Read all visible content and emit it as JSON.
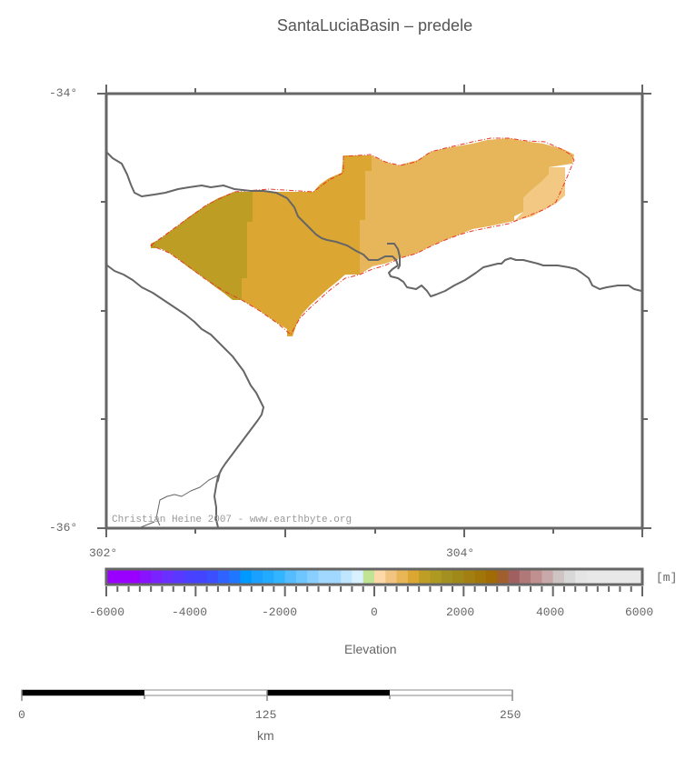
{
  "title": "SantaLuciaBasin – predele",
  "map": {
    "lat_labels": [
      "-34°",
      "-36°"
    ],
    "lon_labels": [
      "302°",
      "304°"
    ],
    "credit": "Christian Heine 2007 - www.earthbyte.org",
    "basin_outline_color": "#e8382a",
    "coastline_color": "#666666"
  },
  "colorbar": {
    "unit": "[m]",
    "title": "Elevation",
    "tick_labels": [
      "-6000",
      "-4000",
      "-2000",
      "0",
      "2000",
      "4000",
      "6000"
    ],
    "min": -6000,
    "max": 6000,
    "colors": [
      "#9900ff",
      "#9900ff",
      "#9900ff",
      "#8a13ff",
      "#7a22ff",
      "#6a30ff",
      "#5a38ff",
      "#4a40ff",
      "#4444ff",
      "#3c4fff",
      "#2e63ff",
      "#1f77ff",
      "#0099ff",
      "#1aa0ff",
      "#22aaff",
      "#33b4ff",
      "#55bdff",
      "#6dc6ff",
      "#88cfff",
      "#a0d8ff",
      "#a0d8ff",
      "#bfe5ff",
      "#d8f0ff",
      "#c0e494",
      "#fdd8a8",
      "#f2c481",
      "#e8b656",
      "#dba632",
      "#bf9e26",
      "#ae9a20",
      "#a39020",
      "#a08819",
      "#a27f10",
      "#a07608",
      "#a06a04",
      "#a05f2d",
      "#a06060",
      "#b07878",
      "#c09090",
      "#c8a8a8",
      "#cfc4c4",
      "#d8d8d8",
      "#e5e5e5",
      "#e8e8e8",
      "#e8e8e8",
      "#e8e8e8",
      "#e8e8e8",
      "#e8e8e8"
    ]
  },
  "scalebar": {
    "tick_labels": [
      "0",
      "125",
      "250"
    ],
    "unit": "km"
  }
}
